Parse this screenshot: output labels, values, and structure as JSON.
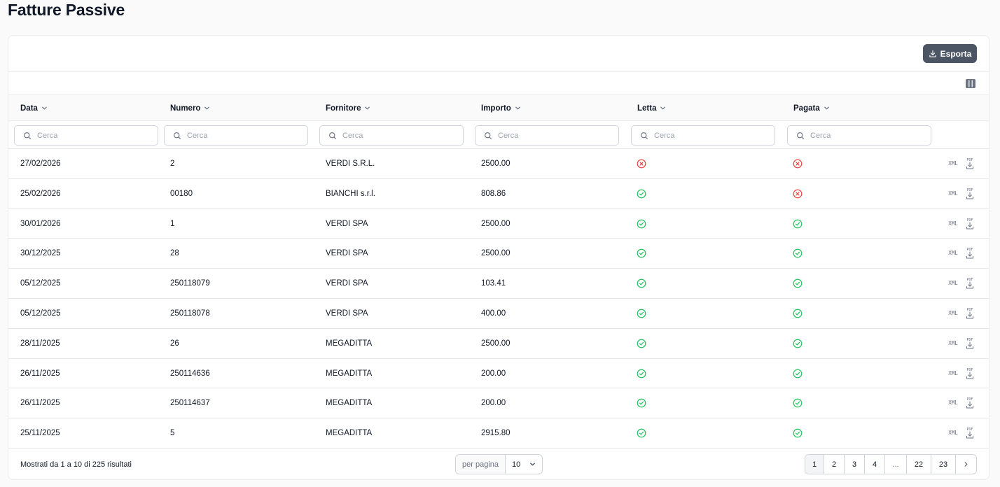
{
  "page": {
    "title": "Fatture Passive"
  },
  "toolbar": {
    "export_label": "Esporta"
  },
  "columns": [
    {
      "key": "data",
      "label": "Data"
    },
    {
      "key": "numero",
      "label": "Numero"
    },
    {
      "key": "fornitore",
      "label": "Fornitore"
    },
    {
      "key": "importo",
      "label": "Importo"
    },
    {
      "key": "letta",
      "label": "Letta"
    },
    {
      "key": "pagata",
      "label": "Pagata"
    }
  ],
  "filter_placeholder": "Cerca",
  "rows": [
    {
      "data": "27/02/2026",
      "numero": "2",
      "fornitore": "VERDI S.R.L.",
      "importo": "2500.00",
      "letta": false,
      "pagata": false
    },
    {
      "data": "25/02/2026",
      "numero": "00180",
      "fornitore": "BIANCHI s.r.l.",
      "importo": "808.86",
      "letta": true,
      "pagata": false
    },
    {
      "data": "30/01/2026",
      "numero": "1",
      "fornitore": "VERDI SPA",
      "importo": "2500.00",
      "letta": true,
      "pagata": true
    },
    {
      "data": "30/12/2025",
      "numero": "28",
      "fornitore": "VERDI SPA",
      "importo": "2500.00",
      "letta": true,
      "pagata": true
    },
    {
      "data": "05/12/2025",
      "numero": "250118079",
      "fornitore": "VERDI SPA",
      "importo": "103.41",
      "letta": true,
      "pagata": true
    },
    {
      "data": "05/12/2025",
      "numero": "250118078",
      "fornitore": "VERDI SPA",
      "importo": "400.00",
      "letta": true,
      "pagata": true
    },
    {
      "data": "28/11/2025",
      "numero": "26",
      "fornitore": "MEGADITTA",
      "importo": "2500.00",
      "letta": true,
      "pagata": true
    },
    {
      "data": "26/11/2025",
      "numero": "250114636",
      "fornitore": "MEGADITTA",
      "importo": "200.00",
      "letta": true,
      "pagata": true
    },
    {
      "data": "26/11/2025",
      "numero": "250114637",
      "fornitore": "MEGADITTA",
      "importo": "200.00",
      "letta": true,
      "pagata": true
    },
    {
      "data": "25/11/2025",
      "numero": "5",
      "fornitore": "MEGADITTA",
      "importo": "2915.80",
      "letta": true,
      "pagata": true
    }
  ],
  "row_actions": {
    "xml_label": "XML",
    "pdf_label": "PDF"
  },
  "footer": {
    "summary": "Mostrati da 1 a 10 di 225 risultati",
    "per_page_label": "per pagina",
    "per_page_value": "10",
    "pages": [
      "1",
      "2",
      "3",
      "4",
      "...",
      "22",
      "23"
    ],
    "current_page": "1"
  },
  "colors": {
    "accent": "#4b5563",
    "ok": "#22c55e",
    "error": "#ef4444",
    "icon": "#6b7280"
  },
  "icons": {
    "export": "download-icon",
    "columns": "columns-icon",
    "sort": "chevron-down-icon",
    "search": "search-icon",
    "ok": "check-circle-icon",
    "error": "x-circle-icon",
    "next": "chevron-right-icon"
  }
}
